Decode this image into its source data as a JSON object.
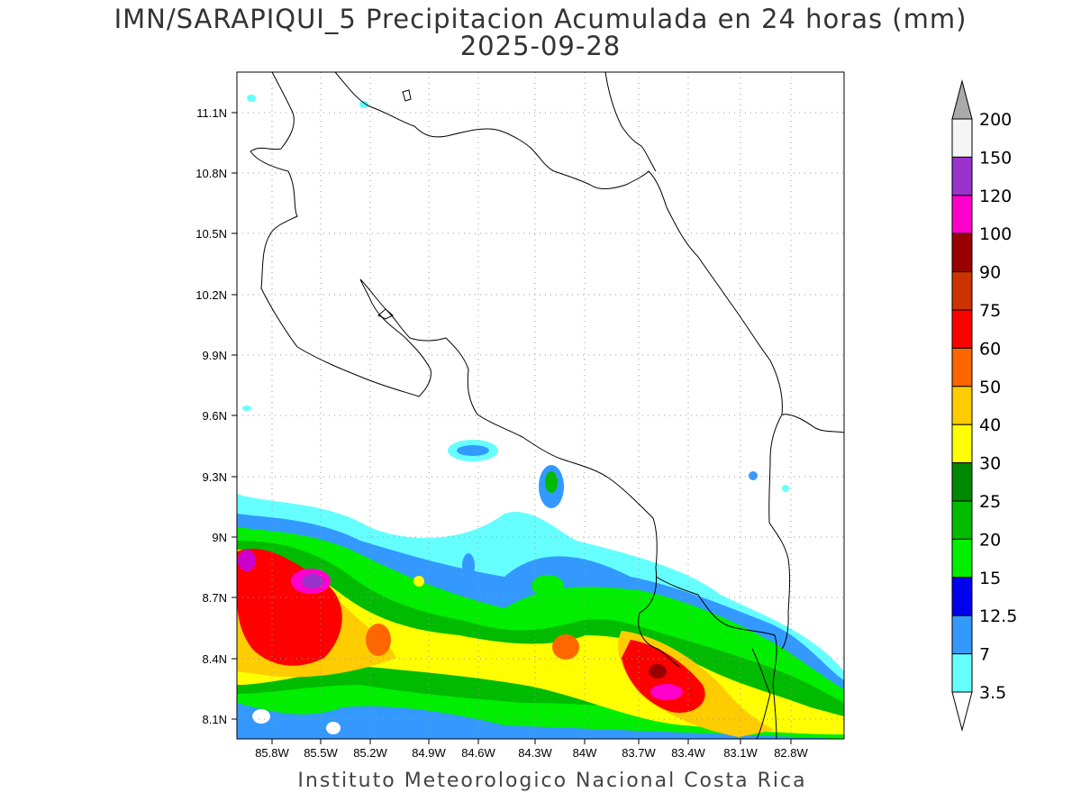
{
  "title": {
    "line1": "IMN/SARAPIQUI_5 Precipitacion Acumulada en 24 horas (mm)",
    "line2": "2025-09-28"
  },
  "footer": "Instituto Meteorologico Nacional Costa Rica",
  "map": {
    "lat_labels": [
      "11.1N",
      "10.8N",
      "10.5N",
      "10.2N",
      "9.9N",
      "9.6N",
      "9.3N",
      "9N",
      "8.7N",
      "8.4N",
      "8.1N"
    ],
    "lon_labels": [
      "85.8W",
      "85.5W",
      "85.2W",
      "84.9W",
      "84.6W",
      "84.3W",
      "84W",
      "83.7W",
      "83.4W",
      "83.1W",
      "82.8W"
    ]
  },
  "colorbar": {
    "levels": [
      "3.5",
      "7",
      "12.5",
      "15",
      "20",
      "25",
      "30",
      "40",
      "50",
      "60",
      "75",
      "90",
      "100",
      "120",
      "150",
      "200"
    ],
    "colors": [
      "#66ffff",
      "#3399ff",
      "#0000ee",
      "#00ee00",
      "#00bb00",
      "#008800",
      "#ffff00",
      "#ffcc00",
      "#ff6600",
      "#ff0000",
      "#cc3300",
      "#990000",
      "#ff00cc",
      "#9933cc",
      "#f5f5f5"
    ],
    "over_color": "#aaaaaa",
    "under_color": "#ffffff"
  }
}
